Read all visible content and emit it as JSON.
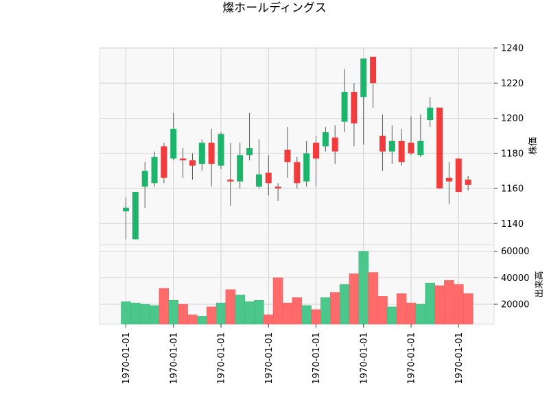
{
  "chart_data": {
    "type": "candlestick",
    "title": "燦ホールディングス",
    "ylabel_price": "株価",
    "ylabel_volume": "出来高",
    "x_tick_labels": [
      "1970-01-01",
      "1970-01-01",
      "1970-01-01",
      "1970-01-01",
      "1970-01-01",
      "1970-01-01",
      "1970-01-01",
      "1970-01-01"
    ],
    "price_ticks": [
      1140,
      1160,
      1180,
      1200,
      1220,
      1240
    ],
    "volume_ticks": [
      20000,
      40000,
      60000
    ],
    "price_ylim": [
      1128,
      1240
    ],
    "volume_ylim": [
      5000,
      65000
    ],
    "colors": {
      "up": "#1db46c",
      "down": "#f03c3c",
      "volume_up": "#4cc78c",
      "volume_down": "#ff6b6b",
      "wick": "#555555",
      "grid": "#d0d0d0",
      "panel_bg": "#f8f8f8"
    },
    "candles": [
      {
        "o": 1147,
        "h": 1155,
        "l": 1131,
        "c": 1149,
        "v": 22000
      },
      {
        "o": 1131,
        "h": 1158,
        "l": 1131,
        "c": 1158,
        "v": 21000
      },
      {
        "o": 1161,
        "h": 1175,
        "l": 1149,
        "c": 1170,
        "v": 20000
      },
      {
        "o": 1163,
        "h": 1181,
        "l": 1161,
        "c": 1178,
        "v": 19000
      },
      {
        "o": 1184,
        "h": 1186,
        "l": 1163,
        "c": 1166,
        "v": 32000
      },
      {
        "o": 1177,
        "h": 1203,
        "l": 1176,
        "c": 1194,
        "v": 23000
      },
      {
        "o": 1177,
        "h": 1183,
        "l": 1166,
        "c": 1176,
        "v": 20000
      },
      {
        "o": 1176,
        "h": 1180,
        "l": 1165,
        "c": 1173,
        "v": 12000
      },
      {
        "o": 1174,
        "h": 1188,
        "l": 1170,
        "c": 1186,
        "v": 11000
      },
      {
        "o": 1186,
        "h": 1194,
        "l": 1161,
        "c": 1174,
        "v": 18000
      },
      {
        "o": 1173,
        "h": 1192,
        "l": 1171,
        "c": 1191,
        "v": 21000
      },
      {
        "o": 1165,
        "h": 1186,
        "l": 1150,
        "c": 1164,
        "v": 31000
      },
      {
        "o": 1164,
        "h": 1186,
        "l": 1160,
        "c": 1179,
        "v": 27000
      },
      {
        "o": 1179,
        "h": 1203,
        "l": 1176,
        "c": 1183,
        "v": 22000
      },
      {
        "o": 1161,
        "h": 1188,
        "l": 1160,
        "c": 1168,
        "v": 23000
      },
      {
        "o": 1169,
        "h": 1179,
        "l": 1156,
        "c": 1163,
        "v": 12000
      },
      {
        "o": 1161,
        "h": 1163,
        "l": 1153,
        "c": 1160,
        "v": 40000
      },
      {
        "o": 1182,
        "h": 1195,
        "l": 1166,
        "c": 1175,
        "v": 21000
      },
      {
        "o": 1175,
        "h": 1178,
        "l": 1160,
        "c": 1163,
        "v": 25000
      },
      {
        "o": 1164,
        "h": 1187,
        "l": 1161,
        "c": 1180,
        "v": 19000
      },
      {
        "o": 1186,
        "h": 1190,
        "l": 1161,
        "c": 1177,
        "v": 16000
      },
      {
        "o": 1184,
        "h": 1195,
        "l": 1181,
        "c": 1192,
        "v": 25000
      },
      {
        "o": 1189,
        "h": 1196,
        "l": 1174,
        "c": 1181,
        "v": 29000
      },
      {
        "o": 1198,
        "h": 1228,
        "l": 1192,
        "c": 1215,
        "v": 35000
      },
      {
        "o": 1215,
        "h": 1220,
        "l": 1184,
        "c": 1197,
        "v": 43000
      },
      {
        "o": 1212,
        "h": 1234,
        "l": 1185,
        "c": 1234,
        "v": 60000
      },
      {
        "o": 1235,
        "h": 1235,
        "l": 1206,
        "c": 1220,
        "v": 44000
      },
      {
        "o": 1190,
        "h": 1202,
        "l": 1170,
        "c": 1181,
        "v": 26000
      },
      {
        "o": 1181,
        "h": 1196,
        "l": 1174,
        "c": 1187,
        "v": 18000
      },
      {
        "o": 1187,
        "h": 1194,
        "l": 1173,
        "c": 1175,
        "v": 28000
      },
      {
        "o": 1186,
        "h": 1201,
        "l": 1179,
        "c": 1180,
        "v": 21000
      },
      {
        "o": 1179,
        "h": 1202,
        "l": 1178,
        "c": 1187,
        "v": 20000
      },
      {
        "o": 1199,
        "h": 1212,
        "l": 1195,
        "c": 1206,
        "v": 36000
      },
      {
        "o": 1206,
        "h": 1206,
        "l": 1160,
        "c": 1160,
        "v": 34000
      },
      {
        "o": 1166,
        "h": 1175,
        "l": 1151,
        "c": 1164,
        "v": 38000
      },
      {
        "o": 1177,
        "h": 1177,
        "l": 1158,
        "c": 1158,
        "v": 35000
      },
      {
        "o": 1165,
        "h": 1167,
        "l": 1159,
        "c": 1162,
        "v": 28000
      }
    ]
  }
}
